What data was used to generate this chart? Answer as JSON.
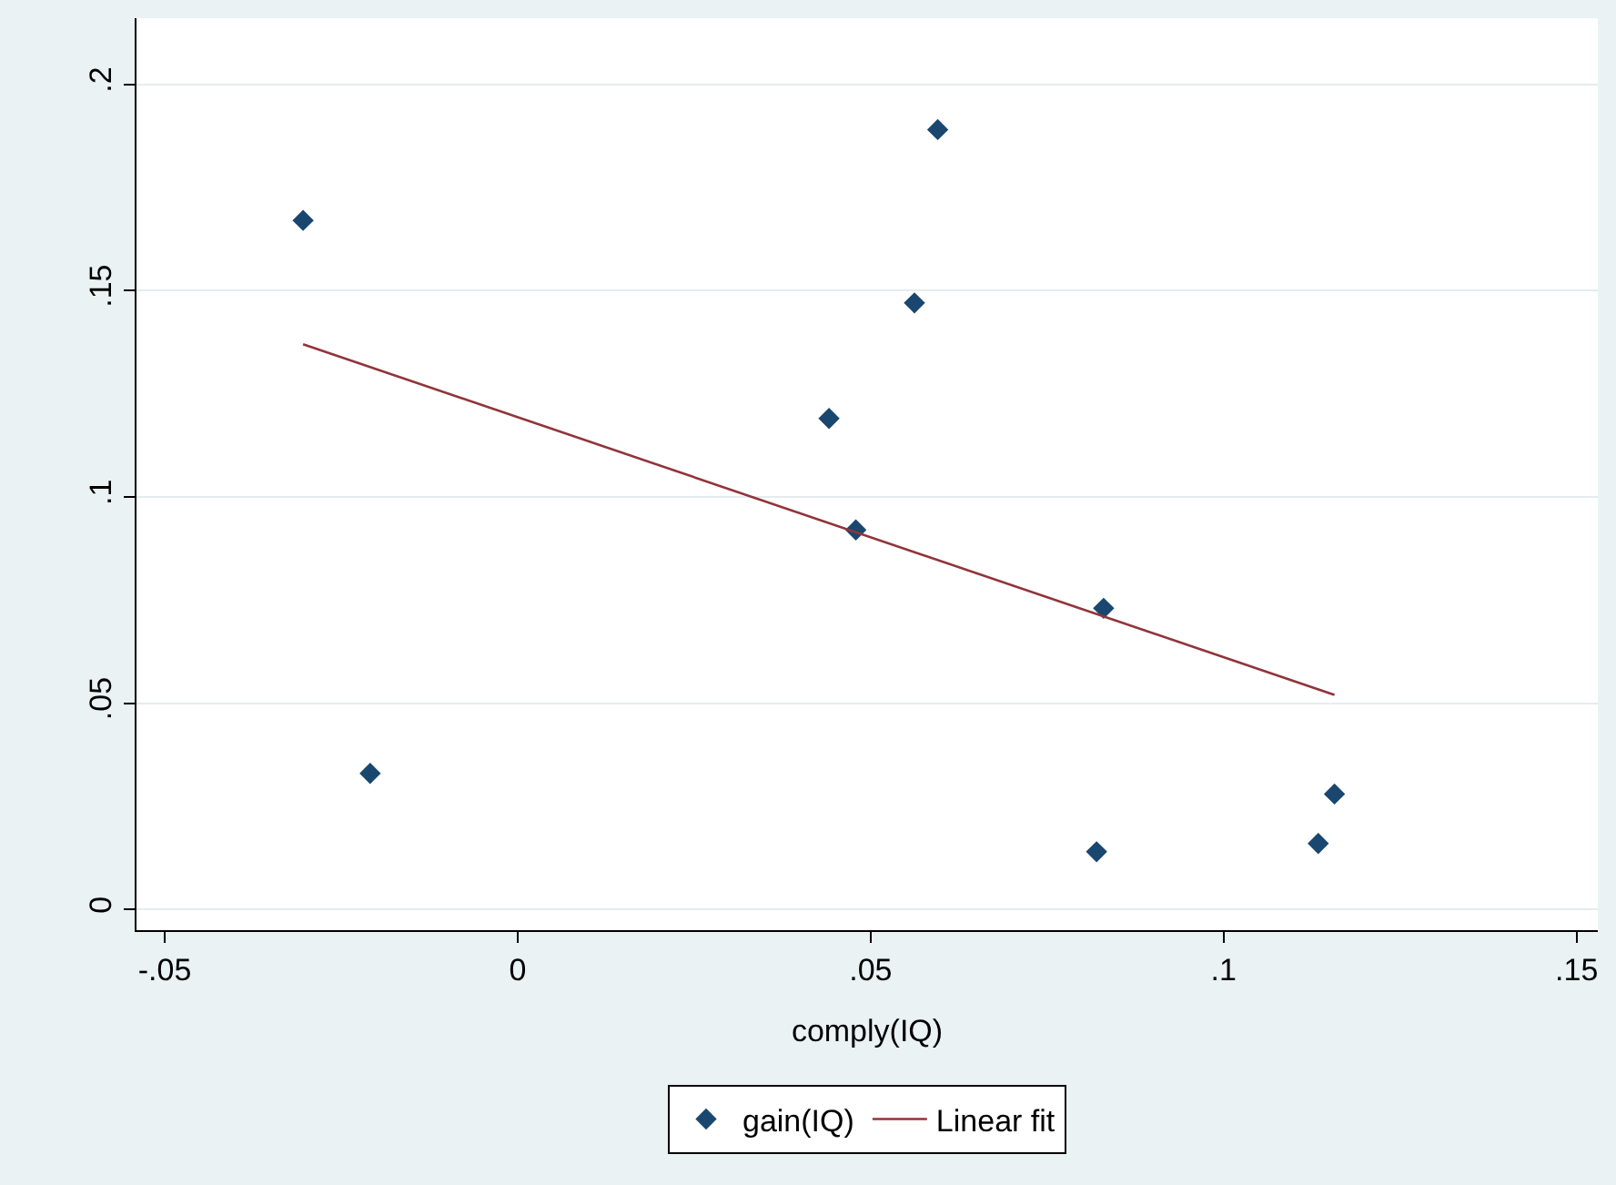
{
  "chart_data": {
    "type": "scatter",
    "xlabel": "comply(IQ)",
    "xlim": [
      -0.054,
      0.153
    ],
    "ylim": [
      -0.005,
      0.216
    ],
    "xticks": [
      {
        "value": -0.05,
        "label": "-.05"
      },
      0,
      {
        "value": 0.05,
        "label": ".05"
      },
      {
        "value": 0.1,
        "label": ".1"
      },
      {
        "value": 0.15,
        "label": ".15"
      }
    ],
    "yticks": [
      0,
      {
        "value": 0.05,
        "label": ".05"
      },
      {
        "value": 0.1,
        "label": ".1"
      },
      {
        "value": 0.15,
        "label": ".15"
      },
      {
        "value": 0.2,
        "label": ".2"
      }
    ],
    "grid": "y",
    "legend": "bottom",
    "series": [
      {
        "name": "gain(IQ)",
        "marker": "diamond",
        "color": "#1a476f",
        "x": [
          -0.0304,
          -0.0209,
          0.0441,
          0.0479,
          0.0562,
          0.0595,
          0.083,
          0.082,
          0.1134,
          0.1157
        ],
        "values": [
          0.167,
          0.033,
          0.119,
          0.092,
          0.147,
          0.189,
          0.073,
          0.014,
          0.016,
          0.028
        ]
      },
      {
        "name": "Linear fit",
        "type": "line",
        "color": "#90353b",
        "x": [
          -0.0304,
          0.1157
        ],
        "values": [
          0.137,
          0.052
        ]
      }
    ]
  }
}
